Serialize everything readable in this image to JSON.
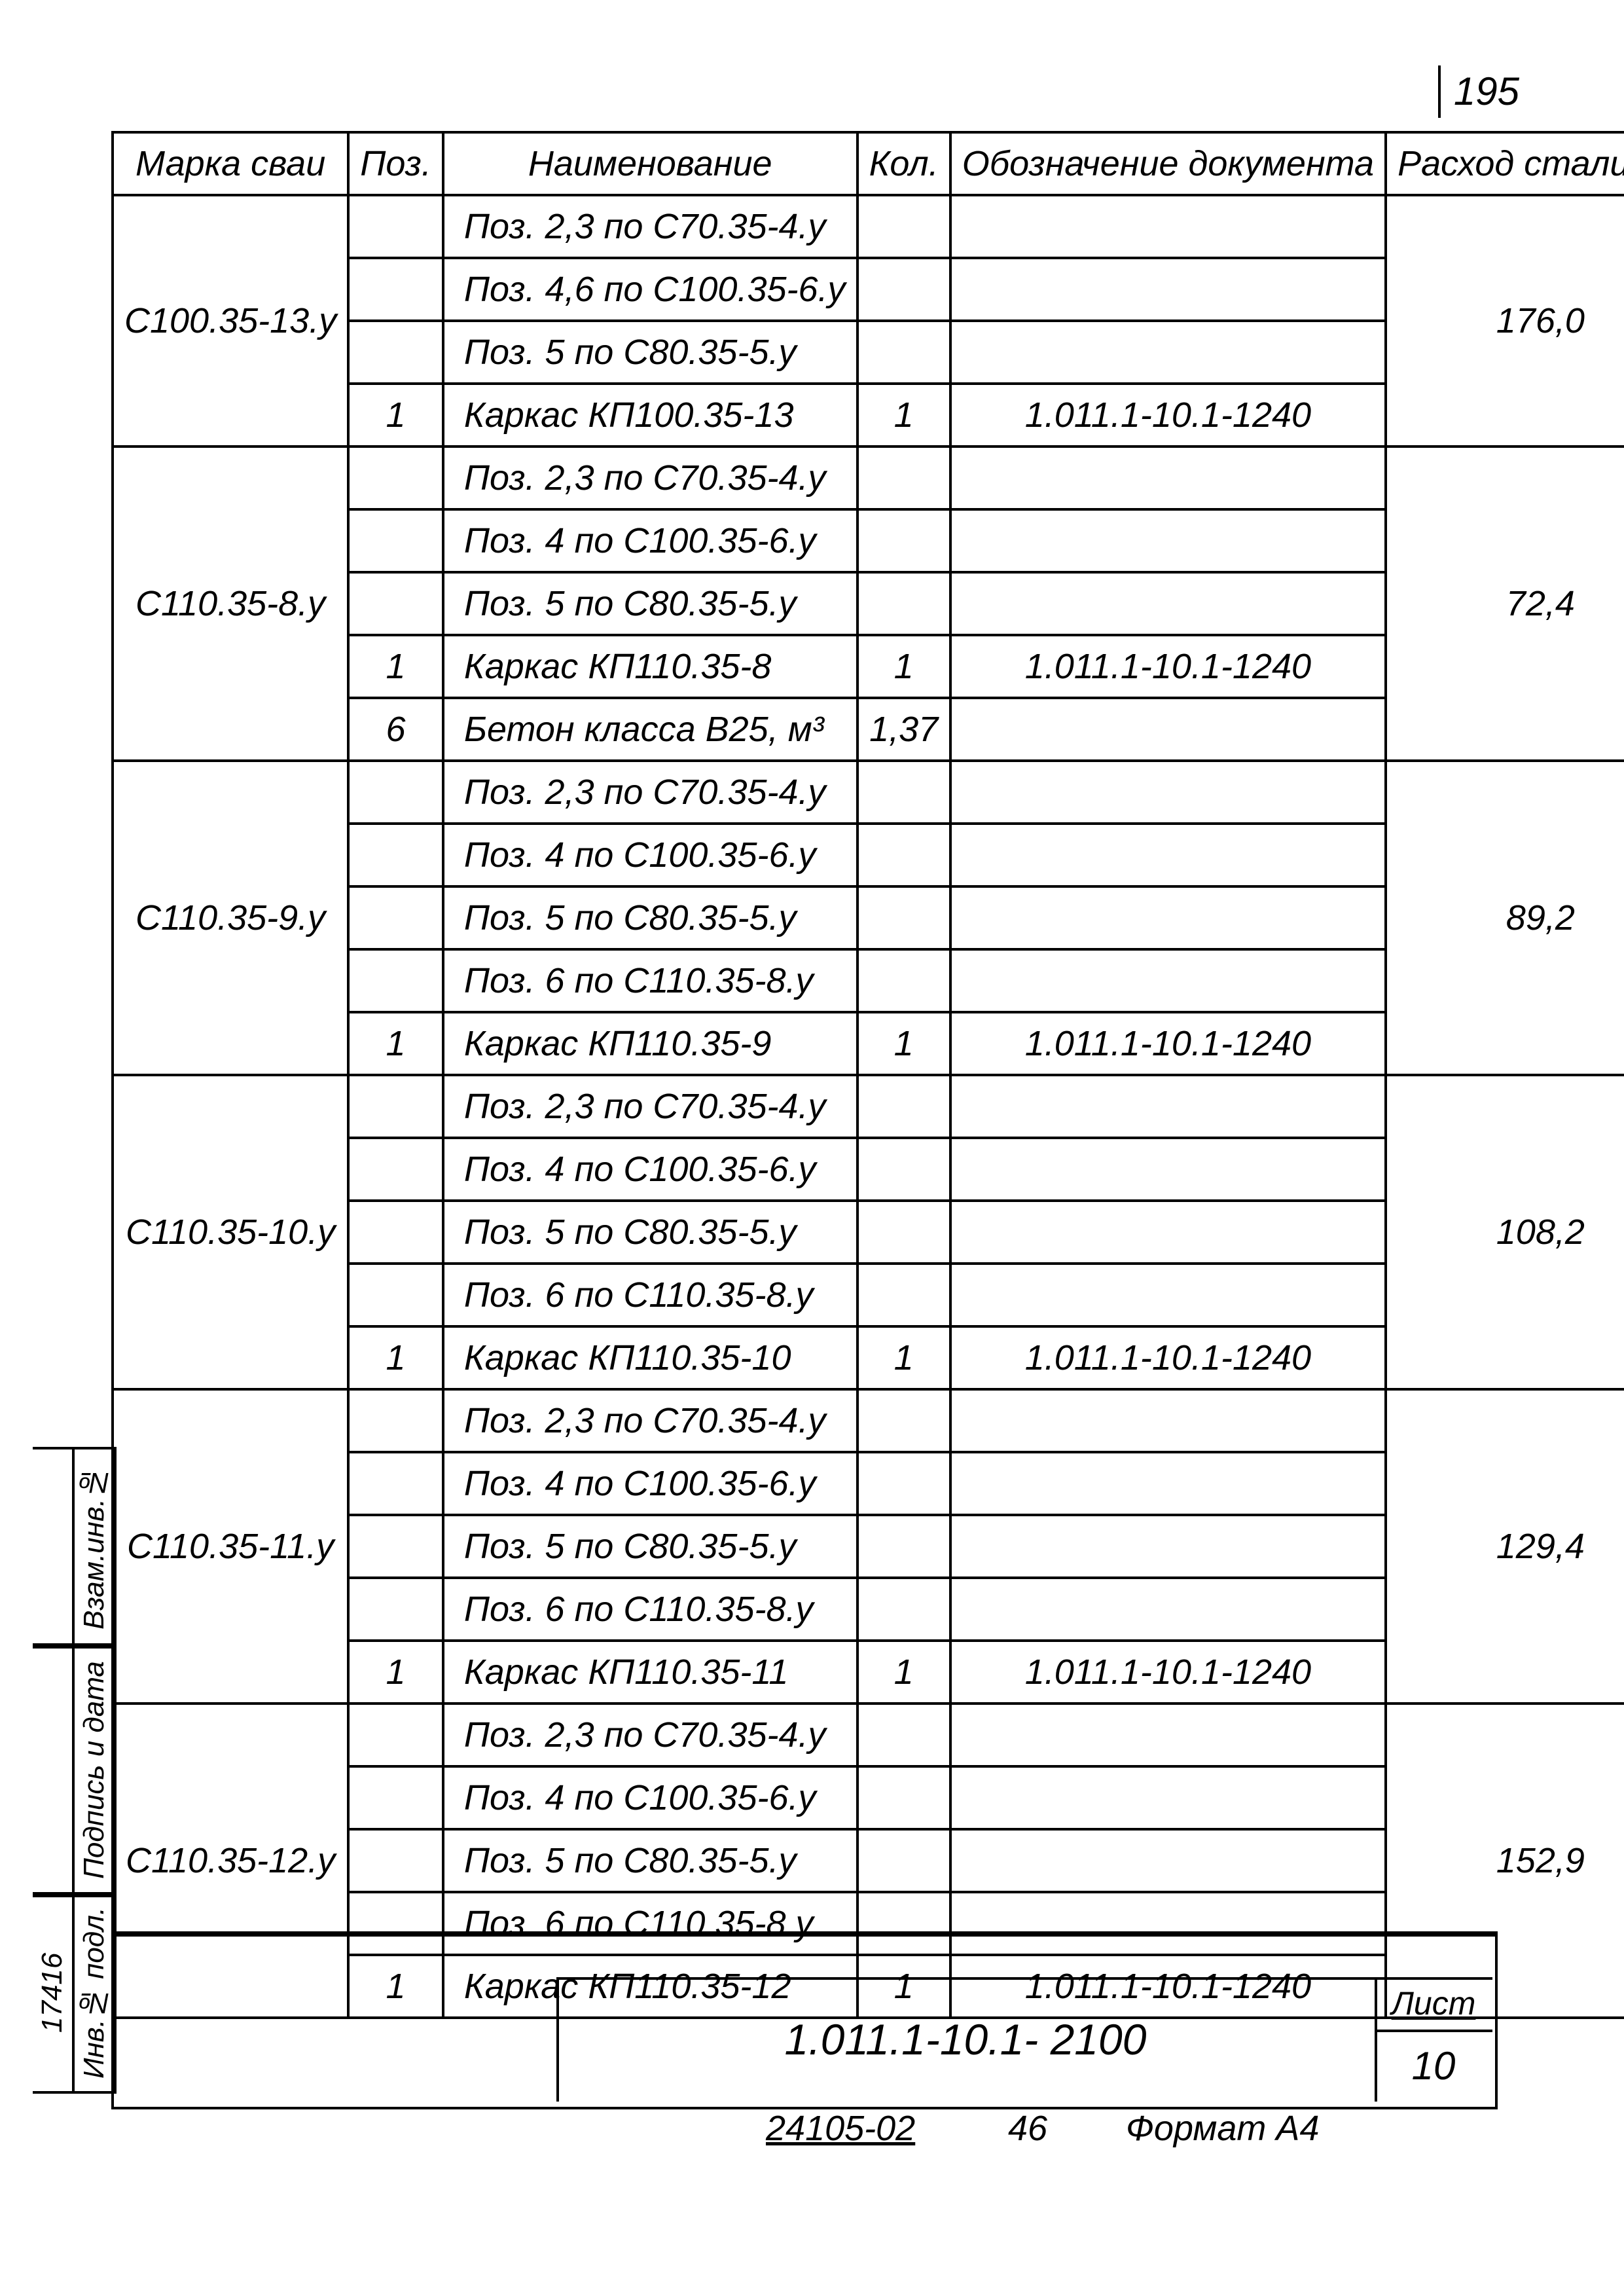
{
  "page_number": "195",
  "columns": {
    "mark": "Марка сваи",
    "pos": "Поз.",
    "name": "Наименование",
    "qty": "Кол.",
    "doc": "Обозначение документа",
    "steel": "Расход стали, кг"
  },
  "groups": [
    {
      "mark": "С100.35-13.у",
      "steel": "176,0",
      "rows": [
        {
          "pos": "",
          "name": "Поз. 2,3 по С70.35-4.у",
          "qty": "",
          "doc": ""
        },
        {
          "pos": "",
          "name": "Поз. 4,6 по С100.35-6.у",
          "qty": "",
          "doc": ""
        },
        {
          "pos": "",
          "name": "Поз. 5 по С80.35-5.у",
          "qty": "",
          "doc": ""
        },
        {
          "pos": "1",
          "name": "Каркас КП100.35-13",
          "qty": "1",
          "doc": "1.011.1-10.1-1240"
        }
      ]
    },
    {
      "mark": "С110.35-8.у",
      "steel": "72,4",
      "rows": [
        {
          "pos": "",
          "name": "Поз. 2,3 по С70.35-4.у",
          "qty": "",
          "doc": ""
        },
        {
          "pos": "",
          "name": "Поз. 4 по С100.35-6.у",
          "qty": "",
          "doc": ""
        },
        {
          "pos": "",
          "name": "Поз. 5 по С80.35-5.у",
          "qty": "",
          "doc": ""
        },
        {
          "pos": "1",
          "name": "Каркас КП110.35-8",
          "qty": "1",
          "doc": "1.011.1-10.1-1240"
        },
        {
          "pos": "6",
          "name": "Бетон класса В25, м³",
          "qty": "1,37",
          "doc": ""
        }
      ]
    },
    {
      "mark": "С110.35-9.у",
      "steel": "89,2",
      "rows": [
        {
          "pos": "",
          "name": "Поз. 2,3 по С70.35-4.у",
          "qty": "",
          "doc": ""
        },
        {
          "pos": "",
          "name": "Поз. 4 по С100.35-6.у",
          "qty": "",
          "doc": ""
        },
        {
          "pos": "",
          "name": "Поз. 5 по С80.35-5.у",
          "qty": "",
          "doc": ""
        },
        {
          "pos": "",
          "name": "Поз. 6 по С110.35-8.у",
          "qty": "",
          "doc": ""
        },
        {
          "pos": "1",
          "name": "Каркас КП110.35-9",
          "qty": "1",
          "doc": "1.011.1-10.1-1240"
        }
      ]
    },
    {
      "mark": "С110.35-10.у",
      "steel": "108,2",
      "rows": [
        {
          "pos": "",
          "name": "Поз. 2,3 по С70.35-4.у",
          "qty": "",
          "doc": ""
        },
        {
          "pos": "",
          "name": "Поз. 4 по С100.35-6.у",
          "qty": "",
          "doc": ""
        },
        {
          "pos": "",
          "name": "Поз. 5 по С80.35-5.у",
          "qty": "",
          "doc": ""
        },
        {
          "pos": "",
          "name": "Поз. 6 по С110.35-8.у",
          "qty": "",
          "doc": ""
        },
        {
          "pos": "1",
          "name": "Каркас КП110.35-10",
          "qty": "1",
          "doc": "1.011.1-10.1-1240"
        }
      ]
    },
    {
      "mark": "С110.35-11.у",
      "steel": "129,4",
      "rows": [
        {
          "pos": "",
          "name": "Поз. 2,3 по С70.35-4.у",
          "qty": "",
          "doc": ""
        },
        {
          "pos": "",
          "name": "Поз. 4 по С100.35-6.у",
          "qty": "",
          "doc": ""
        },
        {
          "pos": "",
          "name": "Поз. 5 по С80.35-5.у",
          "qty": "",
          "doc": ""
        },
        {
          "pos": "",
          "name": "Поз. 6 по С110.35-8.у",
          "qty": "",
          "doc": ""
        },
        {
          "pos": "1",
          "name": "Каркас КП110.35-11",
          "qty": "1",
          "doc": "1.011.1-10.1-1240"
        }
      ]
    },
    {
      "mark": "С110.35-12.у",
      "steel": "152,9",
      "rows": [
        {
          "pos": "",
          "name": "Поз. 2,3 по С70.35-4.у",
          "qty": "",
          "doc": ""
        },
        {
          "pos": "",
          "name": "Поз. 4 по С100.35-6.у",
          "qty": "",
          "doc": ""
        },
        {
          "pos": "",
          "name": "Поз. 5 по С80.35-5.у",
          "qty": "",
          "doc": ""
        },
        {
          "pos": "",
          "name": "Поз. 6 по С110.35-8.у",
          "qty": "",
          "doc": ""
        },
        {
          "pos": "1",
          "name": "Каркас КП110.35-12",
          "qty": "1",
          "doc": "1.011.1-10.1-1240"
        }
      ]
    }
  ],
  "side_stamp": {
    "col1": [
      "Взам.инв.№",
      "Подпись и дата",
      "Инв.№ подл."
    ],
    "col2": [
      "",
      "",
      "17416"
    ]
  },
  "title_block": {
    "doc_number": "1.011.1-10.1- 2100",
    "sheet_label": "Лист",
    "sheet_number": "10"
  },
  "footer": {
    "code": "24105-02",
    "num": "46",
    "format": "Формат А4"
  },
  "style": {
    "font_color": "#000000",
    "border_color": "#000000",
    "background": "#ffffff",
    "header_fontsize_pt": 40,
    "body_fontsize_pt": 40
  }
}
